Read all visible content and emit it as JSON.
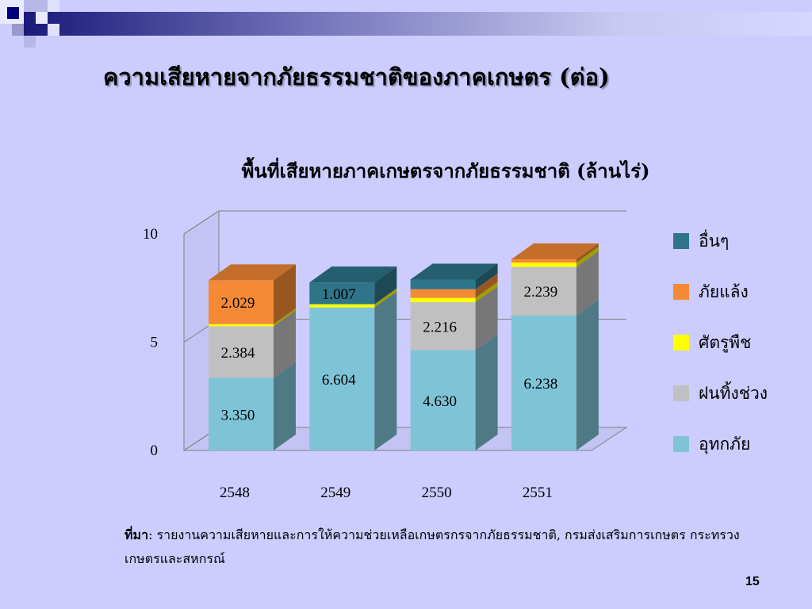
{
  "slide": {
    "title": "ความเสียหายจากภัยธรรมชาติของภาคเกษตร (ต่อ)",
    "source_label": "ที่มา",
    "source_text": ": รายงานความเสียหายและการให้ความช่วยเหลือเกษตรกรจากภัยธรรมชาติ, กรมส่งเสริมการเกษตร กระทรวงเกษตรและสหกรณ์",
    "page_number": "15"
  },
  "chart_data": {
    "type": "bar",
    "stacked": true,
    "three_d": true,
    "title": "พื้นที่เสียหายภาคเกษตรจากภัยธรรมชาติ (ล้านไร่)",
    "categories": [
      "2548",
      "2549",
      "2550",
      "2551"
    ],
    "ylim": [
      0,
      10
    ],
    "yticks": [
      "0",
      "5",
      "10"
    ],
    "grid": true,
    "legend_position": "right",
    "series": [
      {
        "name": "อุทกภัย",
        "color": "#7fc4d6",
        "values": [
          3.35,
          6.604,
          4.63,
          6.238
        ],
        "labels": [
          "3.350",
          "6.604",
          "4.630",
          "6.238"
        ]
      },
      {
        "name": "ฝนทิ้งช่วง",
        "color": "#c0c0c0",
        "values": [
          2.384,
          0.0,
          2.216,
          2.239
        ],
        "labels": [
          "2.384",
          "",
          "2.216",
          "2.239"
        ]
      },
      {
        "name": "ศัตรูพืช",
        "color": "#ffff00",
        "values": [
          0.1,
          0.15,
          0.2,
          0.2
        ],
        "labels": [
          "",
          "",
          "",
          ""
        ]
      },
      {
        "name": "ภัยแล้ง",
        "color": "#f58a36",
        "values": [
          2.029,
          0.0,
          0.4,
          0.15
        ],
        "labels": [
          "2.029",
          "",
          "",
          ""
        ]
      },
      {
        "name": "อื่นๆ",
        "color": "#2e7589",
        "values": [
          0.0,
          1.007,
          0.45,
          0.0
        ],
        "labels": [
          "",
          "1.007",
          "",
          ""
        ]
      }
    ]
  }
}
